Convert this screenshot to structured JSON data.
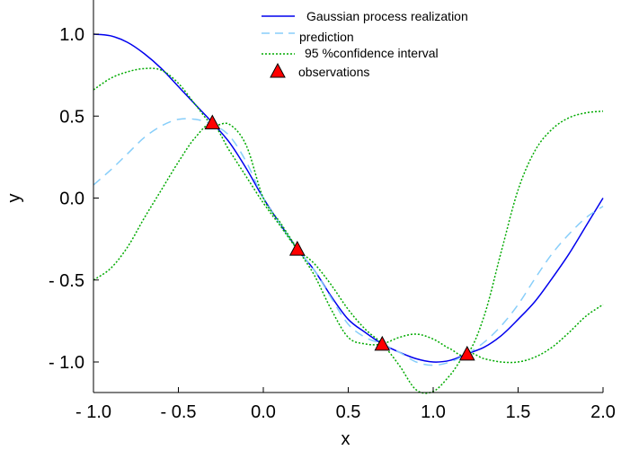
{
  "chart_data": {
    "type": "line",
    "title": "",
    "xlabel": "x",
    "ylabel": "y",
    "xlim": [
      -1.0,
      2.0
    ],
    "ylim": [
      -1.2,
      1.2
    ],
    "xticks": [
      -1.0,
      -0.5,
      0.0,
      0.5,
      1.0,
      1.5,
      2.0
    ],
    "xtick_labels": [
      "- 1.0",
      "- 0.5",
      "0.0",
      "0.5",
      "1.0",
      "1.5",
      "2.0"
    ],
    "yticks": [
      1.0,
      0.5,
      0.0,
      -0.5,
      -1.0
    ],
    "ytick_labels": [
      "1.0",
      "0.5",
      "0.0",
      "- 0.5",
      "- 1.0"
    ],
    "grid": false,
    "legend_position": "top-right",
    "series": [
      {
        "name": "Gaussian process realization",
        "style": "solid",
        "color": "#0000ee",
        "x": [
          -1.0,
          -0.9,
          -0.8,
          -0.7,
          -0.6,
          -0.5,
          -0.4,
          -0.3,
          -0.2,
          -0.1,
          0.0,
          0.1,
          0.2,
          0.3,
          0.4,
          0.5,
          0.6,
          0.7,
          0.8,
          0.9,
          1.0,
          1.1,
          1.2,
          1.3,
          1.4,
          1.5,
          1.6,
          1.7,
          1.8,
          1.9,
          2.0
        ],
        "y": [
          1.0,
          0.99,
          0.95,
          0.88,
          0.79,
          0.68,
          0.57,
          0.46,
          0.34,
          0.18,
          0.0,
          -0.16,
          -0.31,
          -0.44,
          -0.6,
          -0.74,
          -0.82,
          -0.89,
          -0.94,
          -0.98,
          -1.0,
          -0.99,
          -0.95,
          -0.91,
          -0.84,
          -0.74,
          -0.63,
          -0.49,
          -0.34,
          -0.17,
          0.0
        ]
      },
      {
        "name": "prediction",
        "style": "dashed",
        "color": "#87cefa",
        "x": [
          -1.0,
          -0.9,
          -0.8,
          -0.7,
          -0.6,
          -0.5,
          -0.4,
          -0.3,
          -0.2,
          -0.1,
          0.0,
          0.1,
          0.2,
          0.3,
          0.4,
          0.5,
          0.6,
          0.7,
          0.8,
          0.9,
          1.0,
          1.1,
          1.2,
          1.3,
          1.4,
          1.5,
          1.6,
          1.7,
          1.8,
          1.9,
          2.0
        ],
        "y": [
          0.08,
          0.17,
          0.27,
          0.37,
          0.44,
          0.48,
          0.48,
          0.45,
          0.38,
          0.22,
          0.0,
          -0.16,
          -0.31,
          -0.44,
          -0.61,
          -0.77,
          -0.85,
          -0.89,
          -0.94,
          -1.0,
          -1.02,
          -1.0,
          -0.95,
          -0.88,
          -0.78,
          -0.65,
          -0.49,
          -0.34,
          -0.22,
          -0.12,
          -0.05
        ]
      },
      {
        "name": "95 %confidence interval",
        "style": "dotted",
        "color": "#00aa00",
        "x": [
          -1.0,
          -0.9,
          -0.8,
          -0.7,
          -0.6,
          -0.5,
          -0.4,
          -0.3,
          -0.2,
          -0.1,
          0.0,
          0.1,
          0.2,
          0.3,
          0.4,
          0.5,
          0.6,
          0.7,
          0.8,
          0.9,
          1.0,
          1.1,
          1.2,
          1.3,
          1.4,
          1.5,
          1.6,
          1.7,
          1.8,
          1.9,
          2.0
        ],
        "y": [
          0.66,
          0.73,
          0.77,
          0.79,
          0.78,
          0.7,
          0.57,
          0.45,
          0.45,
          0.32,
          0.0,
          -0.15,
          -0.31,
          -0.47,
          -0.68,
          -0.85,
          -0.89,
          -0.89,
          -0.85,
          -0.83,
          -0.86,
          -0.92,
          -0.95,
          -0.72,
          -0.33,
          0.05,
          0.29,
          0.42,
          0.49,
          0.52,
          0.53
        ]
      },
      {
        "name": "",
        "style": "dotted",
        "color": "#00aa00",
        "x": [
          -1.0,
          -0.9,
          -0.8,
          -0.7,
          -0.6,
          -0.5,
          -0.4,
          -0.3,
          -0.2,
          -0.1,
          0.0,
          0.1,
          0.2,
          0.3,
          0.4,
          0.5,
          0.6,
          0.7,
          0.8,
          0.9,
          1.0,
          1.1,
          1.2,
          1.3,
          1.4,
          1.5,
          1.6,
          1.7,
          1.8,
          1.9,
          2.0
        ],
        "y": [
          -0.5,
          -0.43,
          -0.3,
          -0.12,
          0.05,
          0.22,
          0.37,
          0.45,
          0.29,
          0.13,
          -0.03,
          -0.17,
          -0.31,
          -0.4,
          -0.53,
          -0.68,
          -0.8,
          -0.89,
          -1.02,
          -1.17,
          -1.18,
          -1.08,
          -0.95,
          -0.98,
          -1.0,
          -1.0,
          -0.97,
          -0.91,
          -0.82,
          -0.72,
          -0.65
        ]
      }
    ],
    "observations": {
      "name": "observations",
      "marker": "triangle",
      "color": "#ff0000",
      "x": [
        -0.3,
        0.2,
        0.7,
        1.2
      ],
      "y": [
        0.46,
        -0.31,
        -0.89,
        -0.95
      ]
    }
  }
}
